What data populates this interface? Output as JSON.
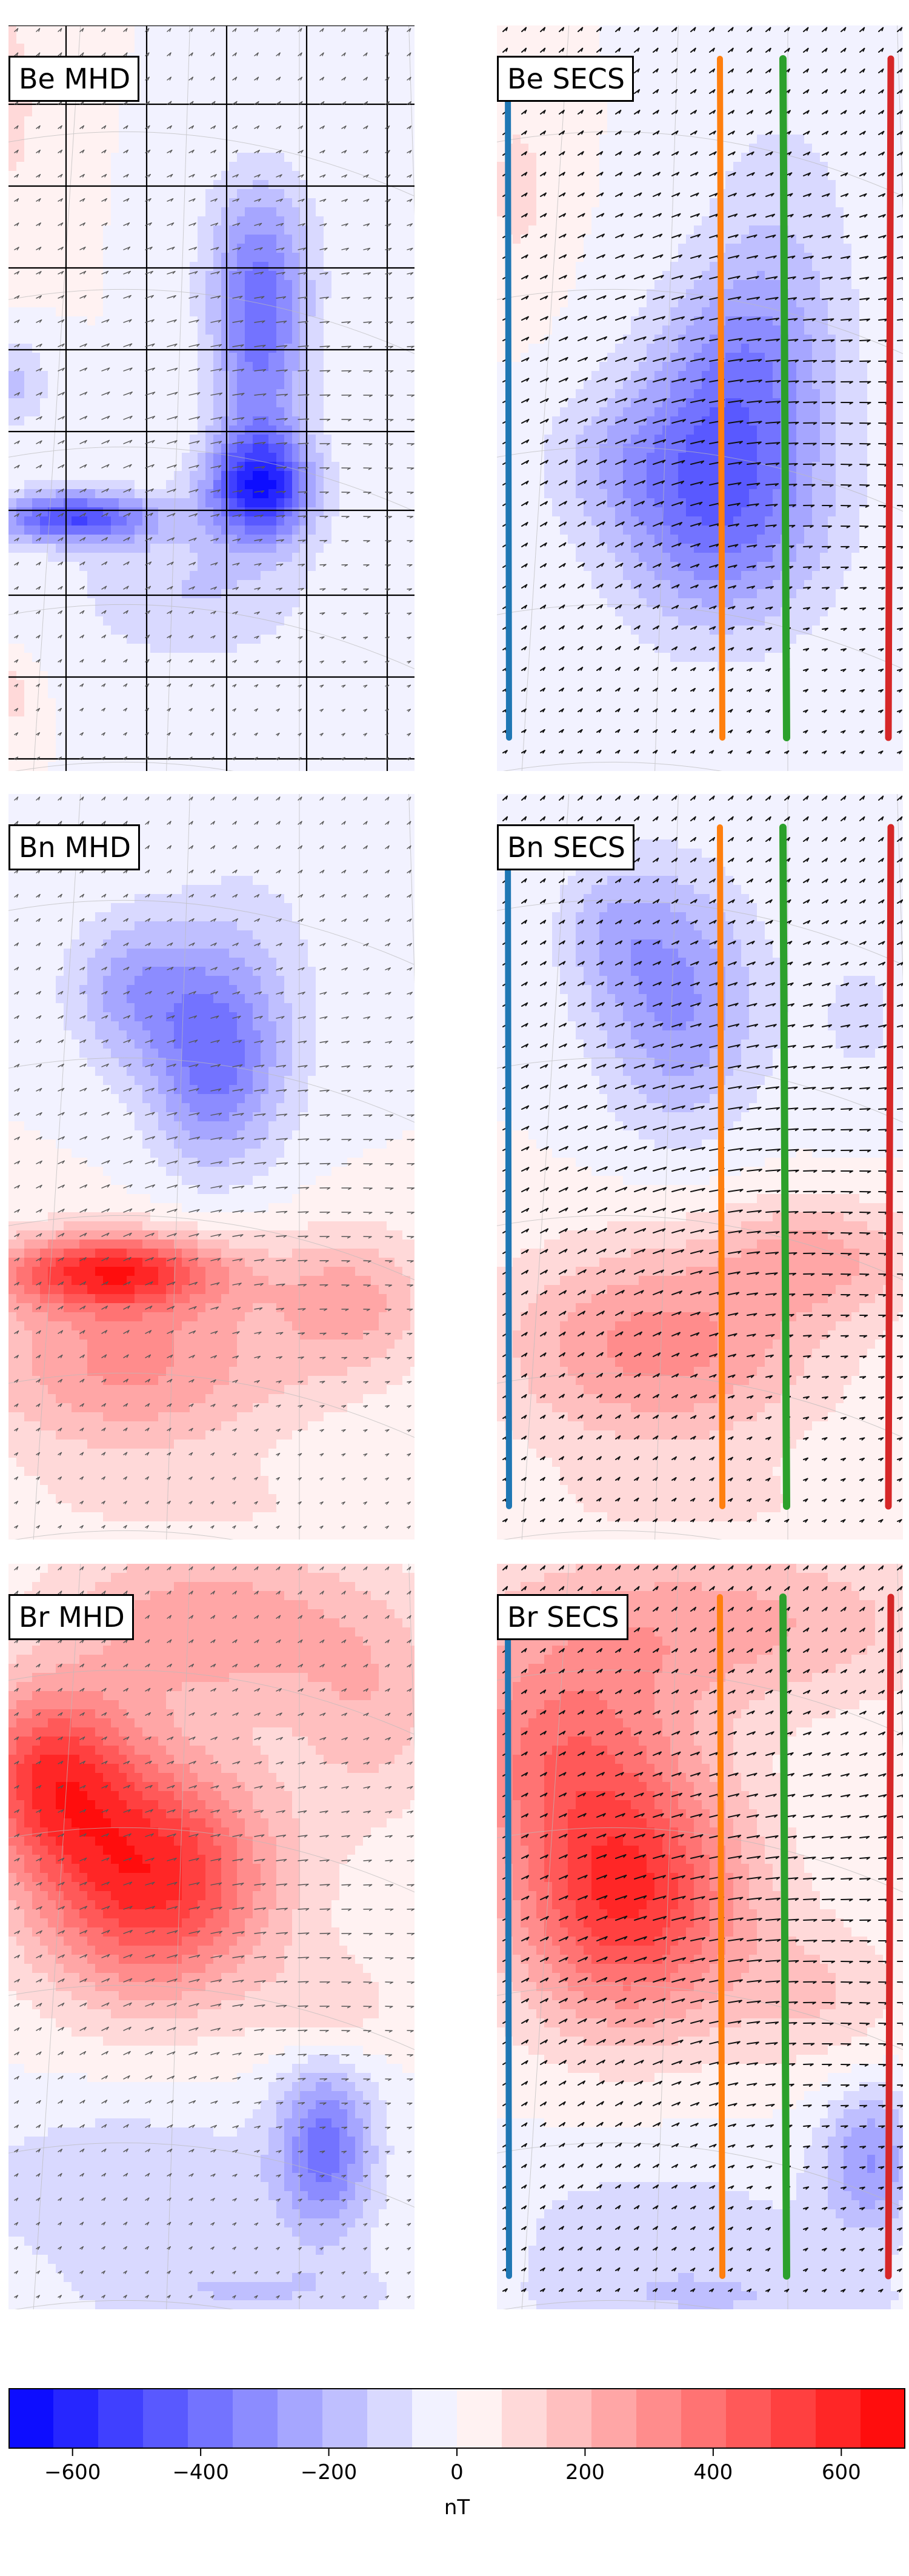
{
  "chart_data": {
    "type": "heatmap",
    "panels": [
      {
        "id": "be-mhd",
        "title": "Be MHD",
        "component": "Be",
        "source": "MHD",
        "row": 1,
        "col": 1,
        "grid_overlay": true,
        "profile_lines": false
      },
      {
        "id": "be-secs",
        "title": "Be SECS",
        "component": "Be",
        "source": "SECS",
        "row": 1,
        "col": 2,
        "grid_overlay": false,
        "profile_lines": true
      },
      {
        "id": "bn-mhd",
        "title": "Bn MHD",
        "component": "Bn",
        "source": "MHD",
        "row": 2,
        "col": 1,
        "grid_overlay": false,
        "profile_lines": false
      },
      {
        "id": "bn-secs",
        "title": "Bn SECS",
        "component": "Bn",
        "source": "SECS",
        "row": 2,
        "col": 2,
        "grid_overlay": false,
        "profile_lines": true
      },
      {
        "id": "br-mhd",
        "title": "Br MHD",
        "component": "Br",
        "source": "MHD",
        "row": 3,
        "col": 1,
        "grid_overlay": false,
        "profile_lines": false
      },
      {
        "id": "br-secs",
        "title": "Br SECS",
        "component": "Br",
        "source": "SECS",
        "row": 3,
        "col": 2,
        "grid_overlay": false,
        "profile_lines": true
      }
    ],
    "profile_line_colors": [
      "#1f77b4",
      "#ff7f0e",
      "#2ca02c",
      "#d62728"
    ],
    "colorbar": {
      "label": "nT",
      "min": -700,
      "max": 700,
      "levels": 20,
      "step": 70,
      "ticks": [
        -600,
        -400,
        -200,
        0,
        200,
        400,
        600
      ],
      "tick_labels": [
        "−600",
        "−400",
        "−200",
        "0",
        "200",
        "400",
        "600"
      ],
      "colormap": "bwr",
      "low_color": "#0000ff",
      "high_color": "#ff0000"
    },
    "vector_overlay": "arrows",
    "grid": false
  }
}
